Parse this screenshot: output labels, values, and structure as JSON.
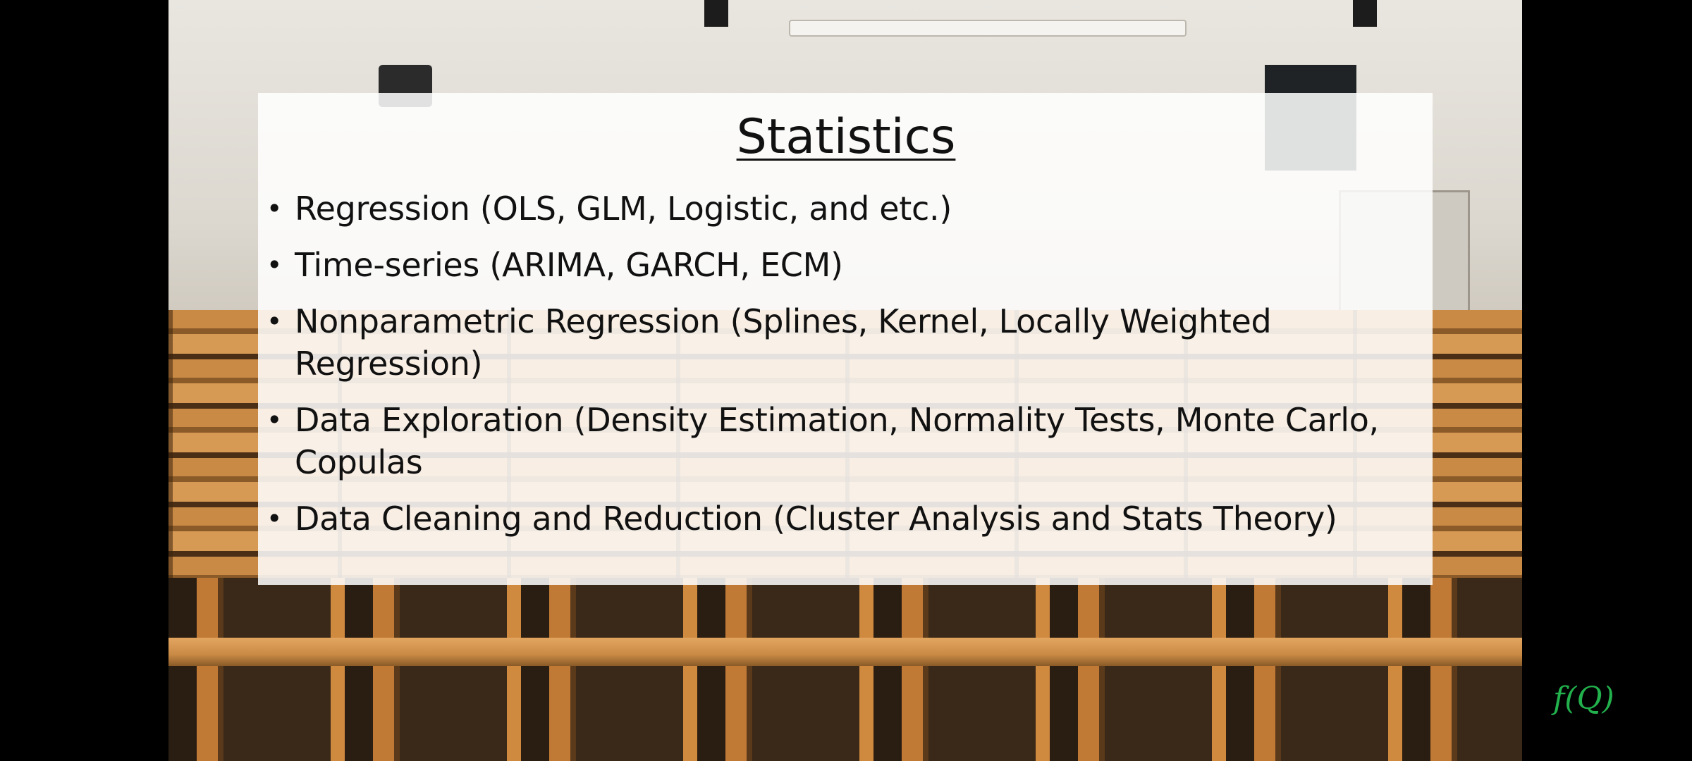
{
  "slide": {
    "title": "Statistics",
    "bullets": [
      {
        "text": "Regression (OLS, GLM, Logistic, and etc.)"
      },
      {
        "text": "Time-series (ARIMA, GARCH, ECM)"
      },
      {
        "text": "Nonparametric Regression (Splines, Kernel, Locally Weighted Regression)"
      },
      {
        "text": "Data Exploration (Density Estimation, Normality Tests, Monte Carlo, Copulas"
      },
      {
        "text": "Data Cleaning and Reduction (Cluster Analysis and Stats Theory)"
      }
    ]
  },
  "logo": {
    "text": "f(Q)",
    "color": "#22b14c"
  },
  "colors": {
    "letterbox": "#000000",
    "content_box": "#ffffff",
    "text": "#111111"
  }
}
